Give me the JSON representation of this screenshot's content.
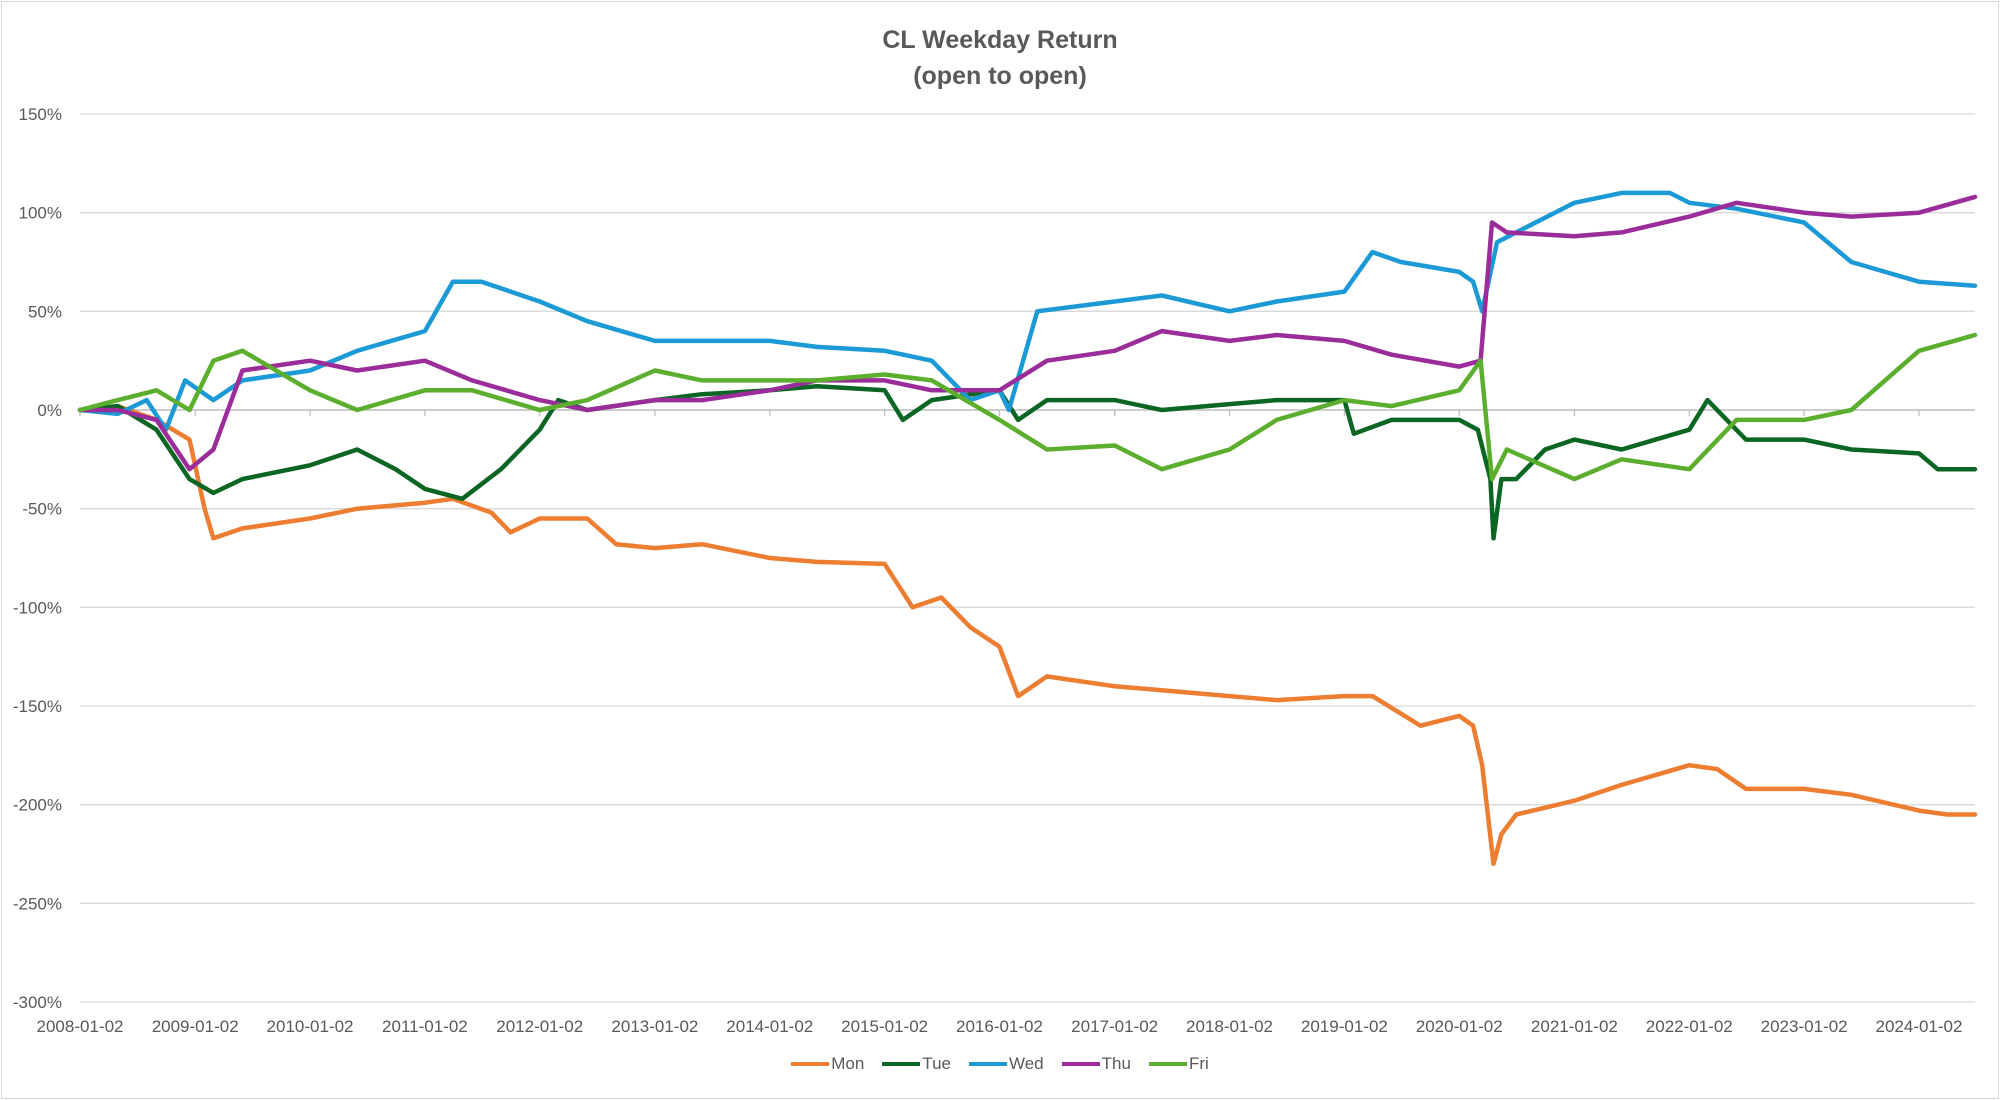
{
  "chart_data": {
    "type": "line",
    "title": "CL Weekday Return",
    "subtitle": "(open to open)",
    "xlabel": "",
    "ylabel": "",
    "x_tick_labels": [
      "2008-01-02",
      "2009-01-02",
      "2010-01-02",
      "2011-01-02",
      "2012-01-02",
      "2013-01-02",
      "2014-01-02",
      "2015-01-02",
      "2016-01-02",
      "2017-01-02",
      "2018-01-02",
      "2019-01-02",
      "2020-01-02",
      "2021-01-02",
      "2022-01-02",
      "2023-01-02",
      "2024-01-02"
    ],
    "y_ticks": [
      1.5,
      1.0,
      0.5,
      0,
      -0.5,
      -1.0,
      -1.5,
      -2.0,
      -2.5,
      -3.0
    ],
    "y_tick_labels": [
      "150%",
      "100%",
      "50%",
      "0%",
      "-50%",
      "-100%",
      "-150%",
      "-200%",
      "-250%",
      "-300%"
    ],
    "ylim": [
      -3.0,
      1.5
    ],
    "xlim": [
      "2008-01-02",
      "2024-06-28"
    ],
    "grid": "horizontal",
    "legend_position": "bottom",
    "series": [
      {
        "name": "Mon",
        "color": "#ed7d31",
        "x": [
          "2008-01-02",
          "2008-05-01",
          "2008-09-01",
          "2008-12-15",
          "2009-02-01",
          "2009-03-01",
          "2009-06-01",
          "2010-01-02",
          "2010-06-01",
          "2011-01-02",
          "2011-04-01",
          "2011-08-01",
          "2011-10-01",
          "2012-01-02",
          "2012-06-01",
          "2012-09-01",
          "2013-01-02",
          "2013-06-01",
          "2014-01-02",
          "2014-06-01",
          "2015-01-02",
          "2015-04-01",
          "2015-07-01",
          "2015-10-01",
          "2016-01-02",
          "2016-03-01",
          "2016-06-01",
          "2017-01-02",
          "2017-06-01",
          "2018-01-02",
          "2018-06-01",
          "2019-01-02",
          "2019-04-01",
          "2019-09-01",
          "2020-01-02",
          "2020-02-15",
          "2020-03-15",
          "2020-04-20",
          "2020-05-15",
          "2020-07-01",
          "2021-01-02",
          "2021-06-01",
          "2022-01-02",
          "2022-04-01",
          "2022-07-01",
          "2023-01-02",
          "2023-06-01",
          "2024-01-02",
          "2024-04-01",
          "2024-06-28"
        ],
        "values": [
          0.0,
          0.02,
          -0.05,
          -0.15,
          -0.5,
          -0.65,
          -0.6,
          -0.55,
          -0.5,
          -0.47,
          -0.45,
          -0.52,
          -0.62,
          -0.55,
          -0.55,
          -0.68,
          -0.7,
          -0.68,
          -0.75,
          -0.77,
          -0.78,
          -1.0,
          -0.95,
          -1.1,
          -1.2,
          -1.45,
          -1.35,
          -1.4,
          -1.42,
          -1.45,
          -1.47,
          -1.45,
          -1.45,
          -1.6,
          -1.55,
          -1.6,
          -1.8,
          -2.3,
          -2.15,
          -2.05,
          -1.98,
          -1.9,
          -1.8,
          -1.82,
          -1.92,
          -1.92,
          -1.95,
          -2.03,
          -2.05,
          -2.05
        ]
      },
      {
        "name": "Tue",
        "color": "#0b6623",
        "x": [
          "2008-01-02",
          "2008-05-01",
          "2008-09-01",
          "2008-12-15",
          "2009-03-01",
          "2009-06-01",
          "2010-01-02",
          "2010-06-01",
          "2010-10-01",
          "2011-01-02",
          "2011-05-01",
          "2011-09-01",
          "2012-01-02",
          "2012-03-01",
          "2012-06-01",
          "2013-01-02",
          "2013-06-01",
          "2014-01-02",
          "2014-06-01",
          "2015-01-02",
          "2015-03-01",
          "2015-06-01",
          "2016-01-02",
          "2016-03-01",
          "2016-06-01",
          "2017-01-02",
          "2017-06-01",
          "2018-01-02",
          "2018-06-01",
          "2019-01-02",
          "2019-02-01",
          "2019-06-01",
          "2020-01-02",
          "2020-03-01",
          "2020-04-10",
          "2020-04-20",
          "2020-05-15",
          "2020-07-01",
          "2020-10-01",
          "2021-01-02",
          "2021-06-01",
          "2022-01-02",
          "2022-03-01",
          "2022-07-01",
          "2023-01-02",
          "2023-06-01",
          "2024-01-02",
          "2024-03-01",
          "2024-06-28"
        ],
        "values": [
          0.0,
          0.02,
          -0.1,
          -0.35,
          -0.42,
          -0.35,
          -0.28,
          -0.2,
          -0.3,
          -0.4,
          -0.45,
          -0.3,
          -0.1,
          0.05,
          0.0,
          0.05,
          0.08,
          0.1,
          0.12,
          0.1,
          -0.05,
          0.05,
          0.1,
          -0.05,
          0.05,
          0.05,
          0.0,
          0.03,
          0.05,
          0.05,
          -0.12,
          -0.05,
          -0.05,
          -0.1,
          -0.35,
          -0.65,
          -0.35,
          -0.35,
          -0.2,
          -0.15,
          -0.2,
          -0.1,
          0.05,
          -0.15,
          -0.15,
          -0.2,
          -0.22,
          -0.3,
          -0.3
        ]
      },
      {
        "name": "Wed",
        "color": "#1b9ad6",
        "x": [
          "2008-01-02",
          "2008-05-01",
          "2008-08-01",
          "2008-10-01",
          "2008-12-01",
          "2009-03-01",
          "2009-06-01",
          "2010-01-02",
          "2010-06-01",
          "2011-01-02",
          "2011-04-01",
          "2011-07-01",
          "2012-01-02",
          "2012-06-01",
          "2013-01-02",
          "2013-06-01",
          "2014-01-02",
          "2014-06-01",
          "2015-01-02",
          "2015-06-01",
          "2015-10-01",
          "2016-01-02",
          "2016-02-01",
          "2016-05-01",
          "2017-01-02",
          "2017-06-01",
          "2018-01-02",
          "2018-06-01",
          "2019-01-02",
          "2019-04-01",
          "2019-07-01",
          "2020-01-02",
          "2020-02-15",
          "2020-03-15",
          "2020-05-01",
          "2020-07-01",
          "2021-01-02",
          "2021-06-01",
          "2021-11-01",
          "2022-01-02",
          "2022-06-01",
          "2023-01-02",
          "2023-06-01",
          "2024-01-02",
          "2024-06-28"
        ],
        "values": [
          0.0,
          -0.02,
          0.05,
          -0.1,
          0.15,
          0.05,
          0.15,
          0.2,
          0.3,
          0.4,
          0.65,
          0.65,
          0.55,
          0.45,
          0.35,
          0.35,
          0.35,
          0.32,
          0.3,
          0.25,
          0.05,
          0.1,
          0.0,
          0.5,
          0.55,
          0.58,
          0.5,
          0.55,
          0.6,
          0.8,
          0.75,
          0.7,
          0.65,
          0.5,
          0.85,
          0.9,
          1.05,
          1.1,
          1.1,
          1.05,
          1.02,
          0.95,
          0.75,
          0.65,
          0.63
        ]
      },
      {
        "name": "Thu",
        "color": "#9b2d9b",
        "x": [
          "2008-01-02",
          "2008-05-01",
          "2008-09-01",
          "2008-12-15",
          "2009-03-01",
          "2009-06-01",
          "2010-01-02",
          "2010-06-01",
          "2011-01-02",
          "2011-06-01",
          "2012-01-02",
          "2012-06-01",
          "2013-01-02",
          "2013-06-01",
          "2014-01-02",
          "2014-06-01",
          "2015-01-02",
          "2015-06-01",
          "2016-01-02",
          "2016-06-01",
          "2017-01-02",
          "2017-06-01",
          "2018-01-02",
          "2018-06-01",
          "2019-01-02",
          "2019-06-01",
          "2020-01-02",
          "2020-03-10",
          "2020-04-15",
          "2020-06-01",
          "2021-01-02",
          "2021-06-01",
          "2022-01-02",
          "2022-06-01",
          "2023-01-02",
          "2023-06-01",
          "2024-01-02",
          "2024-06-28"
        ],
        "values": [
          0.0,
          0.0,
          -0.05,
          -0.3,
          -0.2,
          0.2,
          0.25,
          0.2,
          0.25,
          0.15,
          0.05,
          0.0,
          0.05,
          0.05,
          0.1,
          0.15,
          0.15,
          0.1,
          0.1,
          0.25,
          0.3,
          0.4,
          0.35,
          0.38,
          0.35,
          0.28,
          0.22,
          0.25,
          0.95,
          0.9,
          0.88,
          0.9,
          0.98,
          1.05,
          1.0,
          0.98,
          1.0,
          1.08
        ]
      },
      {
        "name": "Fri",
        "color": "#5bae2e",
        "x": [
          "2008-01-02",
          "2008-05-01",
          "2008-09-01",
          "2008-12-15",
          "2009-03-01",
          "2009-06-01",
          "2010-01-02",
          "2010-06-01",
          "2011-01-02",
          "2011-06-01",
          "2012-01-02",
          "2012-06-01",
          "2013-01-02",
          "2013-06-01",
          "2014-01-02",
          "2014-06-01",
          "2015-01-02",
          "2015-06-01",
          "2016-01-02",
          "2016-06-01",
          "2017-01-02",
          "2017-06-01",
          "2018-01-02",
          "2018-06-01",
          "2019-01-02",
          "2019-06-01",
          "2020-01-02",
          "2020-03-10",
          "2020-04-15",
          "2020-06-01",
          "2021-01-02",
          "2021-06-01",
          "2022-01-02",
          "2022-06-01",
          "2023-01-02",
          "2023-06-01",
          "2024-01-02",
          "2024-06-28"
        ],
        "values": [
          0.0,
          0.05,
          0.1,
          0.0,
          0.25,
          0.3,
          0.1,
          0.0,
          0.1,
          0.1,
          0.0,
          0.05,
          0.2,
          0.15,
          0.15,
          0.15,
          0.18,
          0.15,
          -0.05,
          -0.2,
          -0.18,
          -0.3,
          -0.2,
          -0.05,
          0.05,
          0.02,
          0.1,
          0.25,
          -0.35,
          -0.2,
          -0.35,
          -0.25,
          -0.3,
          -0.05,
          -0.05,
          0.0,
          0.3,
          0.38
        ]
      }
    ]
  }
}
